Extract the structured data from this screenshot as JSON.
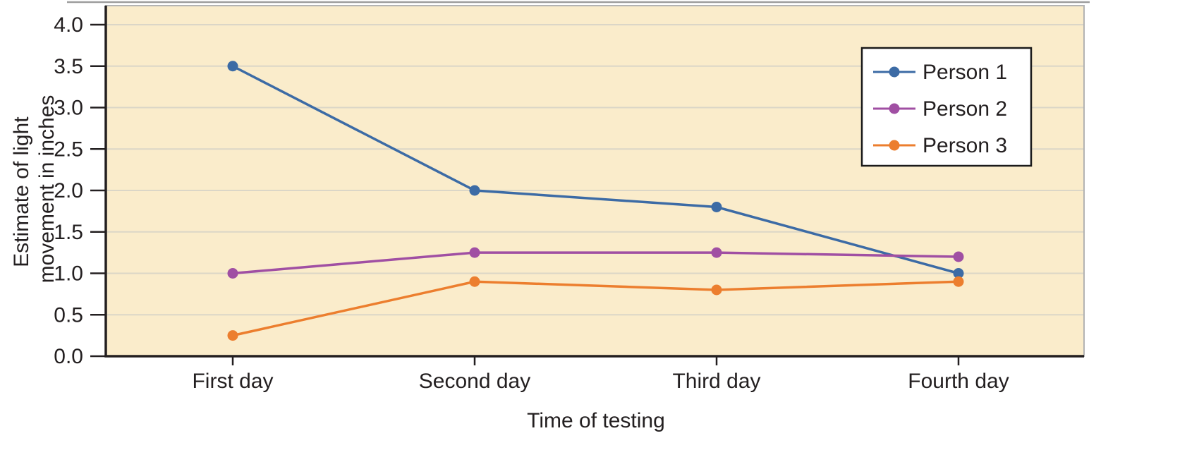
{
  "chart_data": {
    "type": "line",
    "title": "",
    "xlabel": "Time of testing",
    "ylabel": "Estimate of light movement in inches",
    "ylabel_lines": [
      "Estimate of light",
      "movement in inches"
    ],
    "categories": [
      "First day",
      "Second day",
      "Third day",
      "Fourth day"
    ],
    "series": [
      {
        "name": "Person 1",
        "color": "#3C6BA5",
        "values": [
          3.5,
          2.0,
          1.8,
          1.0
        ]
      },
      {
        "name": "Person 2",
        "color": "#A04FA3",
        "values": [
          1.0,
          1.25,
          1.25,
          1.2
        ]
      },
      {
        "name": "Person 3",
        "color": "#EC7E2E",
        "values": [
          0.25,
          0.9,
          0.8,
          0.9
        ]
      }
    ],
    "ylim": [
      0,
      4
    ],
    "ytick_step": 0.5,
    "yticks": [
      "0.0",
      "0.5",
      "1.0",
      "1.5",
      "2.0",
      "2.5",
      "3.0",
      "3.5",
      "4.0"
    ],
    "grid": true,
    "legend_position": "top-right",
    "plot_bg": "#FAECCB",
    "grid_color": "#DBD6C7",
    "axis_color": "#231F20",
    "text_color": "#231F20",
    "legend_border_color": "#1A1A1A",
    "legend_bg": "#FFFFFF"
  }
}
